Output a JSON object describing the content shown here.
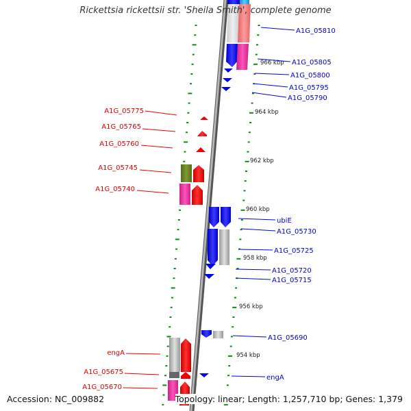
{
  "title": "Rickettsia rickettsii str. 'Sheila Smith', complete genome",
  "footer": {
    "accession": "Accession: NC_009882",
    "topology": "Topology: linear; Length: 1,257,710 bp; Genes: 1,379"
  },
  "colors": {
    "forward_gene": "#0000ee",
    "reverse_gene": "#ee0000",
    "tick": "#118811",
    "backbone": "#888888"
  },
  "scale_labels": [
    "966 kbp",
    "964 kbp",
    "962 kbp",
    "960 kbp",
    "958 kbp",
    "956 kbp",
    "954 kbp"
  ],
  "right_genes": [
    "A1G_05810",
    "A1G_05805",
    "A1G_05800",
    "A1G_05795",
    "A1G_05790",
    "ubiE",
    "A1G_05730",
    "A1G_05725",
    "A1G_05720",
    "A1G_05715",
    "A1G_05690",
    "engA"
  ],
  "left_genes": [
    "A1G_05775",
    "A1G_05765",
    "A1G_05760",
    "A1G_05745",
    "A1G_05740",
    "engA",
    "A1G_05675",
    "A1G_05670"
  ]
}
